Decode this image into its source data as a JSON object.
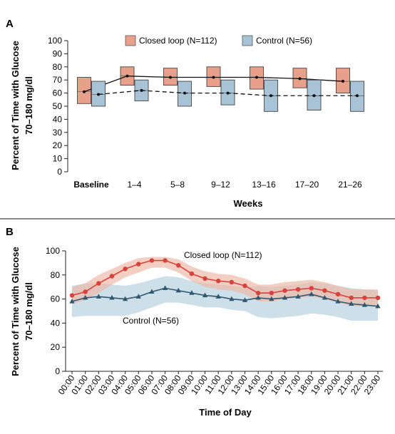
{
  "chart_data": [
    {
      "type": "box",
      "panel": "A",
      "ylabel_line1": "Percent of Time with Glucose",
      "ylabel_line2": "70–180 mg/dl",
      "xlabel": "Weeks",
      "ylim": [
        0,
        100
      ],
      "yticks": [
        0,
        10,
        20,
        30,
        40,
        50,
        60,
        70,
        80,
        90,
        100
      ],
      "categories": [
        "Baseline",
        "1–4",
        "5–8",
        "9–12",
        "13–16",
        "17–20",
        "21–26"
      ],
      "legend_position": "top",
      "series": [
        {
          "name": "Closed loop (N=112)",
          "color": "#e8a08a",
          "line": "solid",
          "boxes": [
            {
              "q1": 52,
              "median": 61,
              "q3": 72
            },
            {
              "q1": 66,
              "median": 73,
              "q3": 80
            },
            {
              "q1": 66,
              "median": 72,
              "q3": 79
            },
            {
              "q1": 65,
              "median": 72,
              "q3": 80
            },
            {
              "q1": 63,
              "median": 72,
              "q3": 80
            },
            {
              "q1": 64,
              "median": 71,
              "q3": 79
            },
            {
              "q1": 60,
              "median": 69,
              "q3": 79
            }
          ]
        },
        {
          "name": "Control (N=56)",
          "color": "#a9c3d6",
          "line": "dashed",
          "boxes": [
            {
              "q1": 50,
              "median": 59,
              "q3": 69
            },
            {
              "q1": 54,
              "median": 62,
              "q3": 70
            },
            {
              "q1": 50,
              "median": 60,
              "q3": 69
            },
            {
              "q1": 51,
              "median": 60,
              "q3": 70
            },
            {
              "q1": 46,
              "median": 58,
              "q3": 70
            },
            {
              "q1": 47,
              "median": 58,
              "q3": 70
            },
            {
              "q1": 46,
              "median": 58,
              "q3": 69
            }
          ]
        }
      ]
    },
    {
      "type": "line",
      "panel": "B",
      "ylabel_line1": "Percent of Time with Glucose",
      "ylabel_line2": "70–180 mg/dl",
      "xlabel": "Time of Day",
      "ylim": [
        0,
        100
      ],
      "yticks": [
        0,
        20,
        40,
        60,
        80,
        100
      ],
      "x": [
        "00:00",
        "01:00",
        "02:00",
        "03:00",
        "04:00",
        "05:00",
        "06:00",
        "07:00",
        "08:00",
        "09:00",
        "10:00",
        "11:00",
        "12:00",
        "13:00",
        "14:00",
        "15:00",
        "16:00",
        "17:00",
        "18:00",
        "19:00",
        "20:00",
        "21:00",
        "22:00",
        "23:00"
      ],
      "series": [
        {
          "name": "Closed loop (N=112)",
          "color": "#d9413a",
          "band_color": "#eeb9a8",
          "marker": "circle",
          "values": [
            63,
            66,
            73,
            79,
            85,
            89,
            92,
            92,
            88,
            81,
            77,
            75,
            74,
            71,
            65,
            65,
            67,
            68,
            69,
            67,
            64,
            61,
            61,
            61
          ],
          "lower": [
            56,
            59,
            65,
            72,
            78,
            82,
            86,
            86,
            82,
            75,
            70,
            68,
            67,
            64,
            58,
            58,
            60,
            61,
            62,
            60,
            57,
            54,
            54,
            54
          ],
          "upper": [
            70,
            73,
            80,
            85,
            90,
            94,
            95,
            95,
            93,
            87,
            83,
            81,
            80,
            77,
            72,
            72,
            74,
            75,
            76,
            74,
            71,
            68,
            68,
            68
          ]
        },
        {
          "name": "Control (N=56)",
          "color": "#2f5870",
          "band_color": "#bcd4e1",
          "marker": "triangle",
          "values": [
            58,
            61,
            62,
            61,
            60,
            62,
            66,
            69,
            67,
            65,
            63,
            62,
            60,
            59,
            61,
            60,
            61,
            62,
            64,
            61,
            58,
            56,
            55,
            54
          ],
          "lower": [
            45,
            46,
            46,
            46,
            46,
            49,
            53,
            57,
            57,
            55,
            53,
            53,
            51,
            50,
            45,
            44,
            45,
            46,
            48,
            47,
            45,
            42,
            42,
            42
          ],
          "upper": [
            71,
            73,
            73,
            72,
            71,
            73,
            76,
            79,
            78,
            75,
            73,
            72,
            71,
            70,
            71,
            70,
            71,
            72,
            74,
            73,
            71,
            69,
            68,
            67
          ]
        }
      ],
      "annotations": [
        {
          "text": "Closed loop (N=112)",
          "near_series": 0
        },
        {
          "text": "Control (N=56)",
          "near_series": 1
        }
      ]
    }
  ]
}
